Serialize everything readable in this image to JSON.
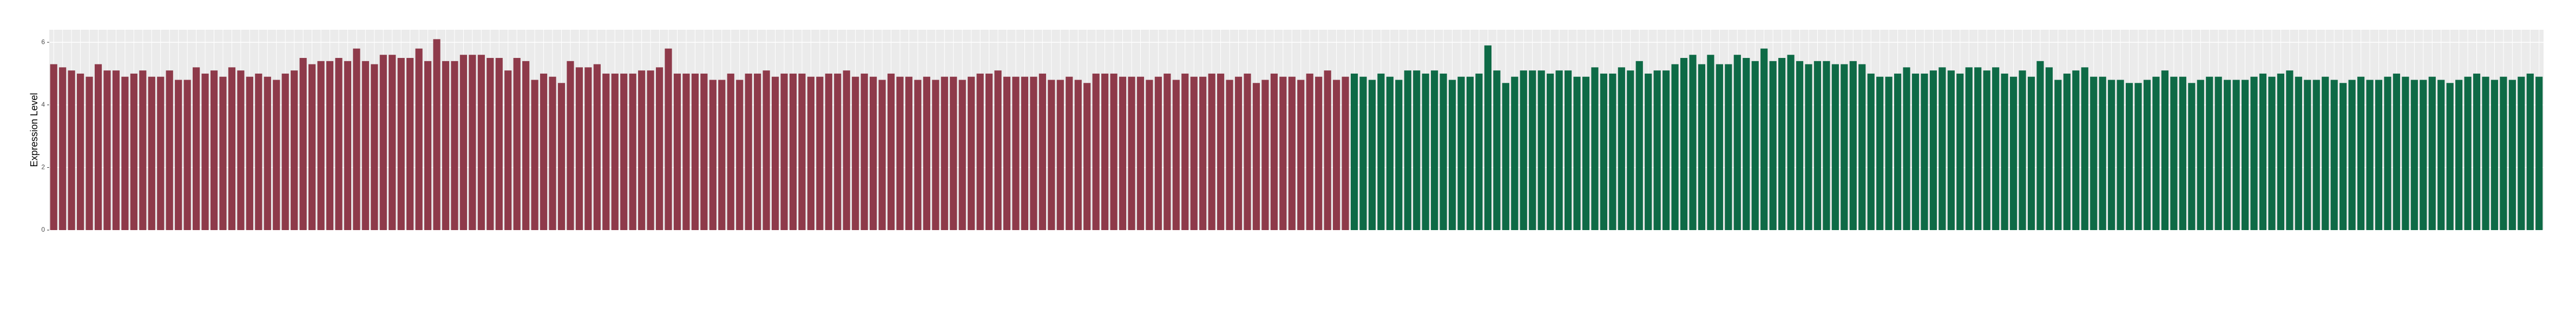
{
  "chart_data": {
    "type": "bar",
    "y_label": "Expression Level",
    "ylim": [
      0,
      6.4
    ],
    "yticks": [
      0,
      2,
      4,
      6
    ],
    "grid": true,
    "categories": [
      null,
      null,
      null,
      null,
      null,
      null,
      null,
      null,
      null,
      null,
      null,
      null,
      null,
      null,
      null,
      null,
      null,
      null,
      null,
      null,
      null,
      null,
      null,
      null,
      null,
      null,
      null,
      null,
      null,
      null,
      null,
      null,
      null,
      null,
      null,
      null,
      null,
      null,
      null,
      null,
      null,
      null,
      null,
      null,
      null,
      null,
      null,
      null,
      null,
      null,
      null,
      null,
      null,
      null,
      null,
      null,
      null,
      null,
      null,
      null,
      null,
      null,
      null,
      null,
      null,
      null,
      null,
      null,
      null,
      null,
      null,
      null,
      null,
      null,
      null,
      null,
      null,
      null,
      null,
      null,
      null,
      null,
      null,
      null,
      null,
      null,
      null,
      null,
      null,
      null,
      null,
      null,
      null,
      null,
      null,
      null,
      null,
      null,
      null,
      null,
      null,
      null,
      null,
      null,
      null,
      null,
      null,
      null,
      null,
      null,
      null,
      null,
      null,
      null,
      null,
      null,
      null,
      null,
      null,
      null,
      null,
      null,
      null,
      null,
      null,
      null,
      null,
      null,
      null,
      null,
      null,
      null,
      null,
      null,
      null,
      null,
      null,
      null,
      null,
      null,
      null,
      null,
      null,
      null,
      null,
      null,
      null,
      null,
      null,
      null,
      null,
      null,
      null,
      null,
      null,
      null,
      null,
      null,
      null,
      null,
      null,
      null,
      null,
      null,
      null,
      null,
      null,
      null,
      null,
      null,
      null,
      null,
      null,
      null,
      null,
      null,
      null,
      null,
      null,
      null,
      null,
      null,
      null,
      null,
      null,
      null,
      null,
      null,
      null,
      null,
      null,
      null,
      null,
      null,
      null,
      null,
      null,
      null,
      null,
      null,
      null,
      null,
      null,
      null,
      null,
      null,
      null,
      null,
      null,
      null,
      null,
      null,
      null,
      null,
      null,
      null,
      null,
      null,
      null,
      null,
      null,
      null,
      null,
      null,
      null,
      null,
      null,
      null,
      null,
      null,
      null,
      null,
      null,
      null,
      null,
      null,
      null,
      null,
      null,
      null,
      null,
      null,
      null,
      null,
      null,
      null,
      null,
      null,
      null,
      null,
      null,
      null,
      null,
      null,
      null,
      null,
      null,
      null,
      null,
      null,
      null,
      null,
      null,
      null,
      null,
      null,
      null,
      null,
      null,
      null,
      null,
      null,
      null,
      null,
      null,
      null,
      null,
      null,
      null,
      null
    ],
    "series": [
      {
        "color": "#8e3a4a",
        "values": [
          5.3,
          5.2,
          5.1,
          5.0,
          4.9,
          5.3,
          5.1,
          5.1,
          4.9,
          5.0,
          5.1,
          4.9,
          4.9,
          5.1,
          4.8,
          4.8,
          5.2,
          5.0,
          5.1,
          4.9,
          5.2,
          5.1,
          4.9,
          5.0,
          4.9,
          4.8,
          5.0,
          5.1,
          5.5,
          5.3,
          5.4,
          5.4,
          5.5,
          5.4,
          5.8,
          5.4,
          5.3,
          5.6,
          5.6,
          5.5,
          5.5,
          5.8,
          5.4,
          6.1,
          5.4,
          5.4,
          5.6,
          5.6,
          5.6,
          5.5,
          5.5,
          5.1,
          5.5,
          5.4,
          4.8,
          5.0,
          4.9,
          4.7,
          5.4,
          5.2,
          5.2,
          5.3,
          5.0,
          5.0,
          5.0,
          5.0,
          5.1,
          5.1,
          5.2,
          5.8,
          5.0,
          5.0,
          5.0,
          5.0,
          4.8,
          4.8,
          5.0,
          4.8,
          5.0,
          5.0,
          5.1,
          4.9,
          5.0,
          5.0,
          5.0,
          4.9,
          4.9,
          5.0,
          5.0,
          5.1,
          4.9,
          5.0,
          4.9,
          4.8,
          5.0,
          4.9,
          4.9,
          4.8,
          4.9,
          4.8,
          4.9,
          4.9,
          4.8,
          4.9,
          5.0,
          5.0,
          5.1,
          4.9,
          4.9,
          4.9,
          4.9,
          5.0,
          4.8,
          4.8,
          4.9,
          4.8,
          4.7,
          5.0,
          5.0,
          5.0,
          4.9,
          4.9,
          4.9,
          4.8,
          4.9,
          5.0,
          4.8,
          5.0,
          4.9,
          4.9,
          5.0,
          5.0,
          4.8,
          4.9,
          5.0,
          4.7,
          4.8,
          5.0,
          4.9,
          4.9,
          4.8,
          5.0,
          4.9,
          5.1,
          4.8,
          4.9,
          null,
          null,
          null,
          null,
          null,
          null,
          null,
          null,
          null,
          null,
          null,
          null,
          null,
          null,
          null,
          null,
          null,
          null,
          null,
          null,
          null,
          null,
          null,
          null,
          null,
          null,
          null,
          null,
          null,
          null,
          null,
          null,
          null,
          null,
          null,
          null,
          null,
          null,
          null,
          null,
          null,
          null,
          null,
          null,
          null,
          null,
          null,
          null,
          null,
          null,
          null,
          null,
          null,
          null,
          null,
          null,
          null,
          null,
          null,
          null,
          null,
          null,
          null,
          null,
          null,
          null,
          null,
          null,
          null,
          null,
          null,
          null,
          null,
          null,
          null,
          null,
          null,
          null,
          null,
          null,
          null,
          null,
          null,
          null,
          null,
          null,
          null,
          null,
          null,
          null,
          null,
          null,
          null,
          null,
          null,
          null,
          null,
          null,
          null,
          null,
          null,
          null,
          null,
          null,
          null,
          null,
          null,
          null,
          null,
          null,
          null,
          null,
          null,
          null,
          null,
          null,
          null,
          null,
          null,
          null,
          null,
          null,
          null,
          null,
          null,
          null,
          null,
          null,
          null,
          null,
          null,
          null,
          null,
          null
        ]
      },
      {
        "color": "#0e6a46",
        "values": [
          null,
          null,
          null,
          null,
          null,
          null,
          null,
          null,
          null,
          null,
          null,
          null,
          null,
          null,
          null,
          null,
          null,
          null,
          null,
          null,
          null,
          null,
          null,
          null,
          null,
          null,
          null,
          null,
          null,
          null,
          null,
          null,
          null,
          null,
          null,
          null,
          null,
          null,
          null,
          null,
          null,
          null,
          null,
          null,
          null,
          null,
          null,
          null,
          null,
          null,
          null,
          null,
          null,
          null,
          null,
          null,
          null,
          null,
          null,
          null,
          null,
          null,
          null,
          null,
          null,
          null,
          null,
          null,
          null,
          null,
          null,
          null,
          null,
          null,
          null,
          null,
          null,
          null,
          null,
          null,
          null,
          null,
          null,
          null,
          null,
          null,
          null,
          null,
          null,
          null,
          null,
          null,
          null,
          null,
          null,
          null,
          null,
          null,
          null,
          null,
          null,
          null,
          null,
          null,
          null,
          null,
          null,
          null,
          null,
          null,
          null,
          null,
          null,
          null,
          null,
          null,
          null,
          null,
          null,
          null,
          null,
          null,
          null,
          null,
          null,
          null,
          null,
          null,
          null,
          null,
          null,
          null,
          null,
          null,
          null,
          null,
          null,
          null,
          null,
          null,
          null,
          null,
          null,
          null,
          null,
          null,
          5.0,
          4.9,
          4.8,
          5.0,
          4.9,
          4.8,
          5.1,
          5.1,
          5.0,
          5.1,
          5.0,
          4.8,
          4.9,
          4.9,
          5.0,
          5.9,
          5.1,
          4.7,
          4.9,
          5.1,
          5.1,
          5.1,
          5.0,
          5.1,
          5.1,
          4.9,
          4.9,
          5.2,
          5.0,
          5.0,
          5.2,
          5.1,
          5.4,
          5.0,
          5.1,
          5.1,
          5.3,
          5.5,
          5.6,
          5.3,
          5.6,
          5.3,
          5.3,
          5.6,
          5.5,
          5.4,
          5.8,
          5.4,
          5.5,
          5.6,
          5.4,
          5.3,
          5.4,
          5.4,
          5.3,
          5.3,
          5.4,
          5.3,
          5.0,
          4.9,
          4.9,
          5.0,
          5.2,
          5.0,
          5.0,
          5.1,
          5.2,
          5.1,
          5.0,
          5.2,
          5.2,
          5.1,
          5.2,
          5.0,
          4.9,
          5.1,
          4.9,
          5.4,
          5.2,
          4.8,
          5.0,
          5.1,
          5.2,
          4.9,
          4.9,
          4.8,
          4.8,
          4.7,
          4.7,
          4.8,
          4.9,
          5.1,
          4.9,
          4.9,
          4.7,
          4.8,
          4.9,
          4.9,
          4.8,
          4.8,
          4.8,
          4.9,
          5.0,
          4.9,
          5.0,
          5.1,
          4.9,
          4.8,
          4.8,
          4.9,
          4.8,
          4.7,
          4.8,
          4.9,
          4.8,
          4.8,
          4.9,
          5.0,
          4.9,
          4.8,
          4.8,
          4.9,
          4.8,
          4.7,
          4.8,
          4.9,
          5.0,
          4.9,
          4.8,
          4.9,
          4.8,
          4.9,
          5.0,
          4.9
        ]
      }
    ]
  }
}
